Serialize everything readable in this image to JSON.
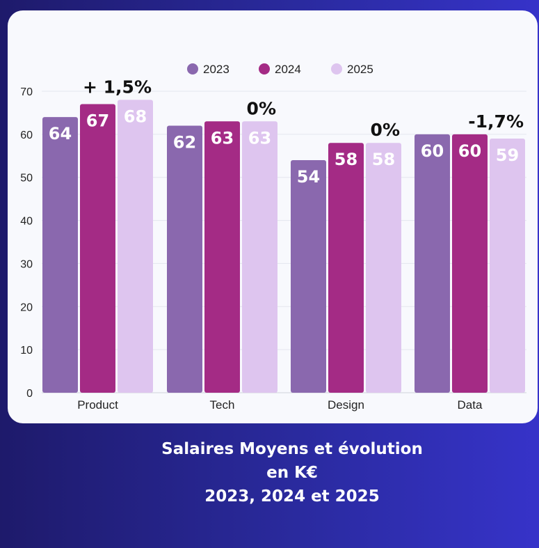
{
  "chart_data": {
    "type": "bar",
    "categories": [
      "Product",
      "Tech",
      "Design",
      "Data"
    ],
    "series": [
      {
        "name": "2023",
        "values": [
          64,
          62,
          54,
          60
        ],
        "color": "#8a68ae"
      },
      {
        "name": "2024",
        "values": [
          67,
          63,
          58,
          60
        ],
        "color": "#a42b85"
      },
      {
        "name": "2025",
        "values": [
          68,
          63,
          58,
          59
        ],
        "color": "#dec5ef"
      }
    ],
    "ylim": [
      0,
      70
    ],
    "yticks": [
      0,
      10,
      20,
      30,
      40,
      50,
      60,
      70
    ],
    "grid": true,
    "legend": "top-center",
    "annotations": [
      "+ 1,5%",
      "0%",
      "0%",
      "-1,7%"
    ]
  },
  "caption": {
    "line1": "Salaires Moyens et évolution",
    "line2": "en K€",
    "line3": "2023, 2024 et 2025"
  }
}
